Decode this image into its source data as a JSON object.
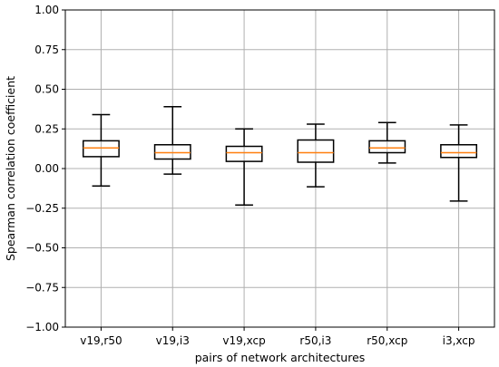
{
  "chart_data": {
    "type": "box",
    "title": "",
    "xlabel": "pairs of network architectures",
    "ylabel": "Spearman correlation coefficient",
    "ylim": [
      -1.0,
      1.0
    ],
    "yticks": [
      "1.00",
      "0.75",
      "0.50",
      "0.25",
      "0.00",
      "−0.25",
      "−0.50",
      "−0.75",
      "−1.00"
    ],
    "ytick_values": [
      1.0,
      0.75,
      0.5,
      0.25,
      0.0,
      -0.25,
      -0.5,
      -0.75,
      -1.0
    ],
    "grid": true,
    "categories": [
      "v19,r50",
      "v19,i3",
      "v19,xcp",
      "r50,i3",
      "r50,xcp",
      "i3,xcp"
    ],
    "boxes": [
      {
        "whisker_low": -0.11,
        "q1": 0.075,
        "median": 0.13,
        "q3": 0.175,
        "whisker_high": 0.34
      },
      {
        "whisker_low": -0.035,
        "q1": 0.06,
        "median": 0.1,
        "q3": 0.15,
        "whisker_high": 0.39
      },
      {
        "whisker_low": -0.23,
        "q1": 0.045,
        "median": 0.1,
        "q3": 0.14,
        "whisker_high": 0.25
      },
      {
        "whisker_low": -0.115,
        "q1": 0.04,
        "median": 0.1,
        "q3": 0.18,
        "whisker_high": 0.28
      },
      {
        "whisker_low": 0.035,
        "q1": 0.1,
        "median": 0.13,
        "q3": 0.175,
        "whisker_high": 0.29
      },
      {
        "whisker_low": -0.205,
        "q1": 0.07,
        "median": 0.1,
        "q3": 0.15,
        "whisker_high": 0.275
      }
    ],
    "colors": {
      "box": "#000000",
      "median": "#ff7f0e",
      "grid": "#b0b0b0"
    }
  }
}
